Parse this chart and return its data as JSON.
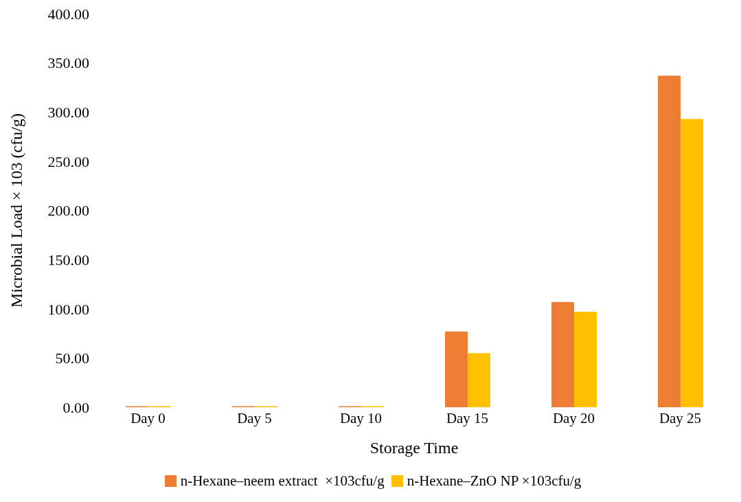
{
  "chart_data": {
    "type": "bar",
    "xlabel": "Storage Time",
    "ylabel": "Microbial Load × 103 (cfu/g)",
    "categories": [
      "Day 0",
      "Day 5",
      "Day 10",
      "Day 15",
      "Day 20",
      "Day 25"
    ],
    "series": [
      {
        "name": "n-Hexane–neem extract  ×103cfu/g",
        "color": "#ed7d31",
        "values": [
          1,
          1,
          1,
          77,
          107,
          337
        ]
      },
      {
        "name": "n-Hexane–ZnO NP ×103cfu/g",
        "color": "#ffc000",
        "values": [
          1,
          1,
          1,
          55,
          97,
          293
        ]
      }
    ],
    "ylim": [
      0,
      400
    ],
    "yticks": [
      {
        "value": 0,
        "label": "0.00"
      },
      {
        "value": 50,
        "label": "50.00"
      },
      {
        "value": 100,
        "label": "100.00"
      },
      {
        "value": 150,
        "label": "150.00"
      },
      {
        "value": 200,
        "label": "200.00"
      },
      {
        "value": 250,
        "label": "250.00"
      },
      {
        "value": 300,
        "label": "300.00"
      },
      {
        "value": 350,
        "label": "350.00"
      },
      {
        "value": 400,
        "label": "400.00"
      }
    ],
    "grid": false,
    "legend": "bottom"
  }
}
